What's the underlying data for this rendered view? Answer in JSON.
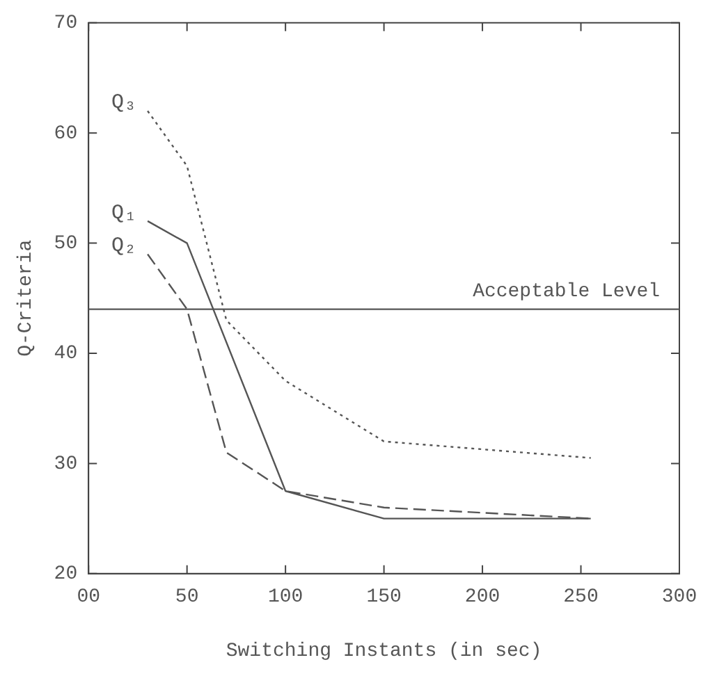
{
  "chart_data": {
    "type": "line",
    "xlabel": "Switching Instants (in sec)",
    "ylabel": "Q-Criteria",
    "xlim": [
      0,
      300
    ],
    "xticks": [
      {
        "value": 0,
        "label": "00"
      },
      50,
      100,
      150,
      200,
      250,
      300
    ],
    "ylim": [
      20,
      70
    ],
    "yticks": [
      20,
      30,
      40,
      50,
      60,
      70
    ],
    "grid": false,
    "legend": false,
    "marker": "none",
    "ref_lines": [
      {
        "axis": "y",
        "value": 44,
        "label": "Acceptable Level",
        "color": "#555555"
      }
    ],
    "series": [
      {
        "name": "Q₁",
        "color": "#555555",
        "line_style": "solid",
        "x": [
          30,
          50,
          100,
          150,
          255
        ],
        "values": [
          52,
          50,
          27.5,
          25,
          25
        ]
      },
      {
        "name": "Q₂",
        "color": "#555555",
        "line_style": "dashed",
        "x": [
          30,
          50,
          70,
          100,
          150,
          255
        ],
        "values": [
          49,
          44,
          31,
          27.5,
          26,
          25
        ]
      },
      {
        "name": "Q₃",
        "color": "#555555",
        "line_style": "dotted",
        "x": [
          30,
          50,
          70,
          100,
          150,
          255
        ],
        "values": [
          62,
          57,
          43,
          37.5,
          32,
          30.5
        ]
      }
    ]
  }
}
